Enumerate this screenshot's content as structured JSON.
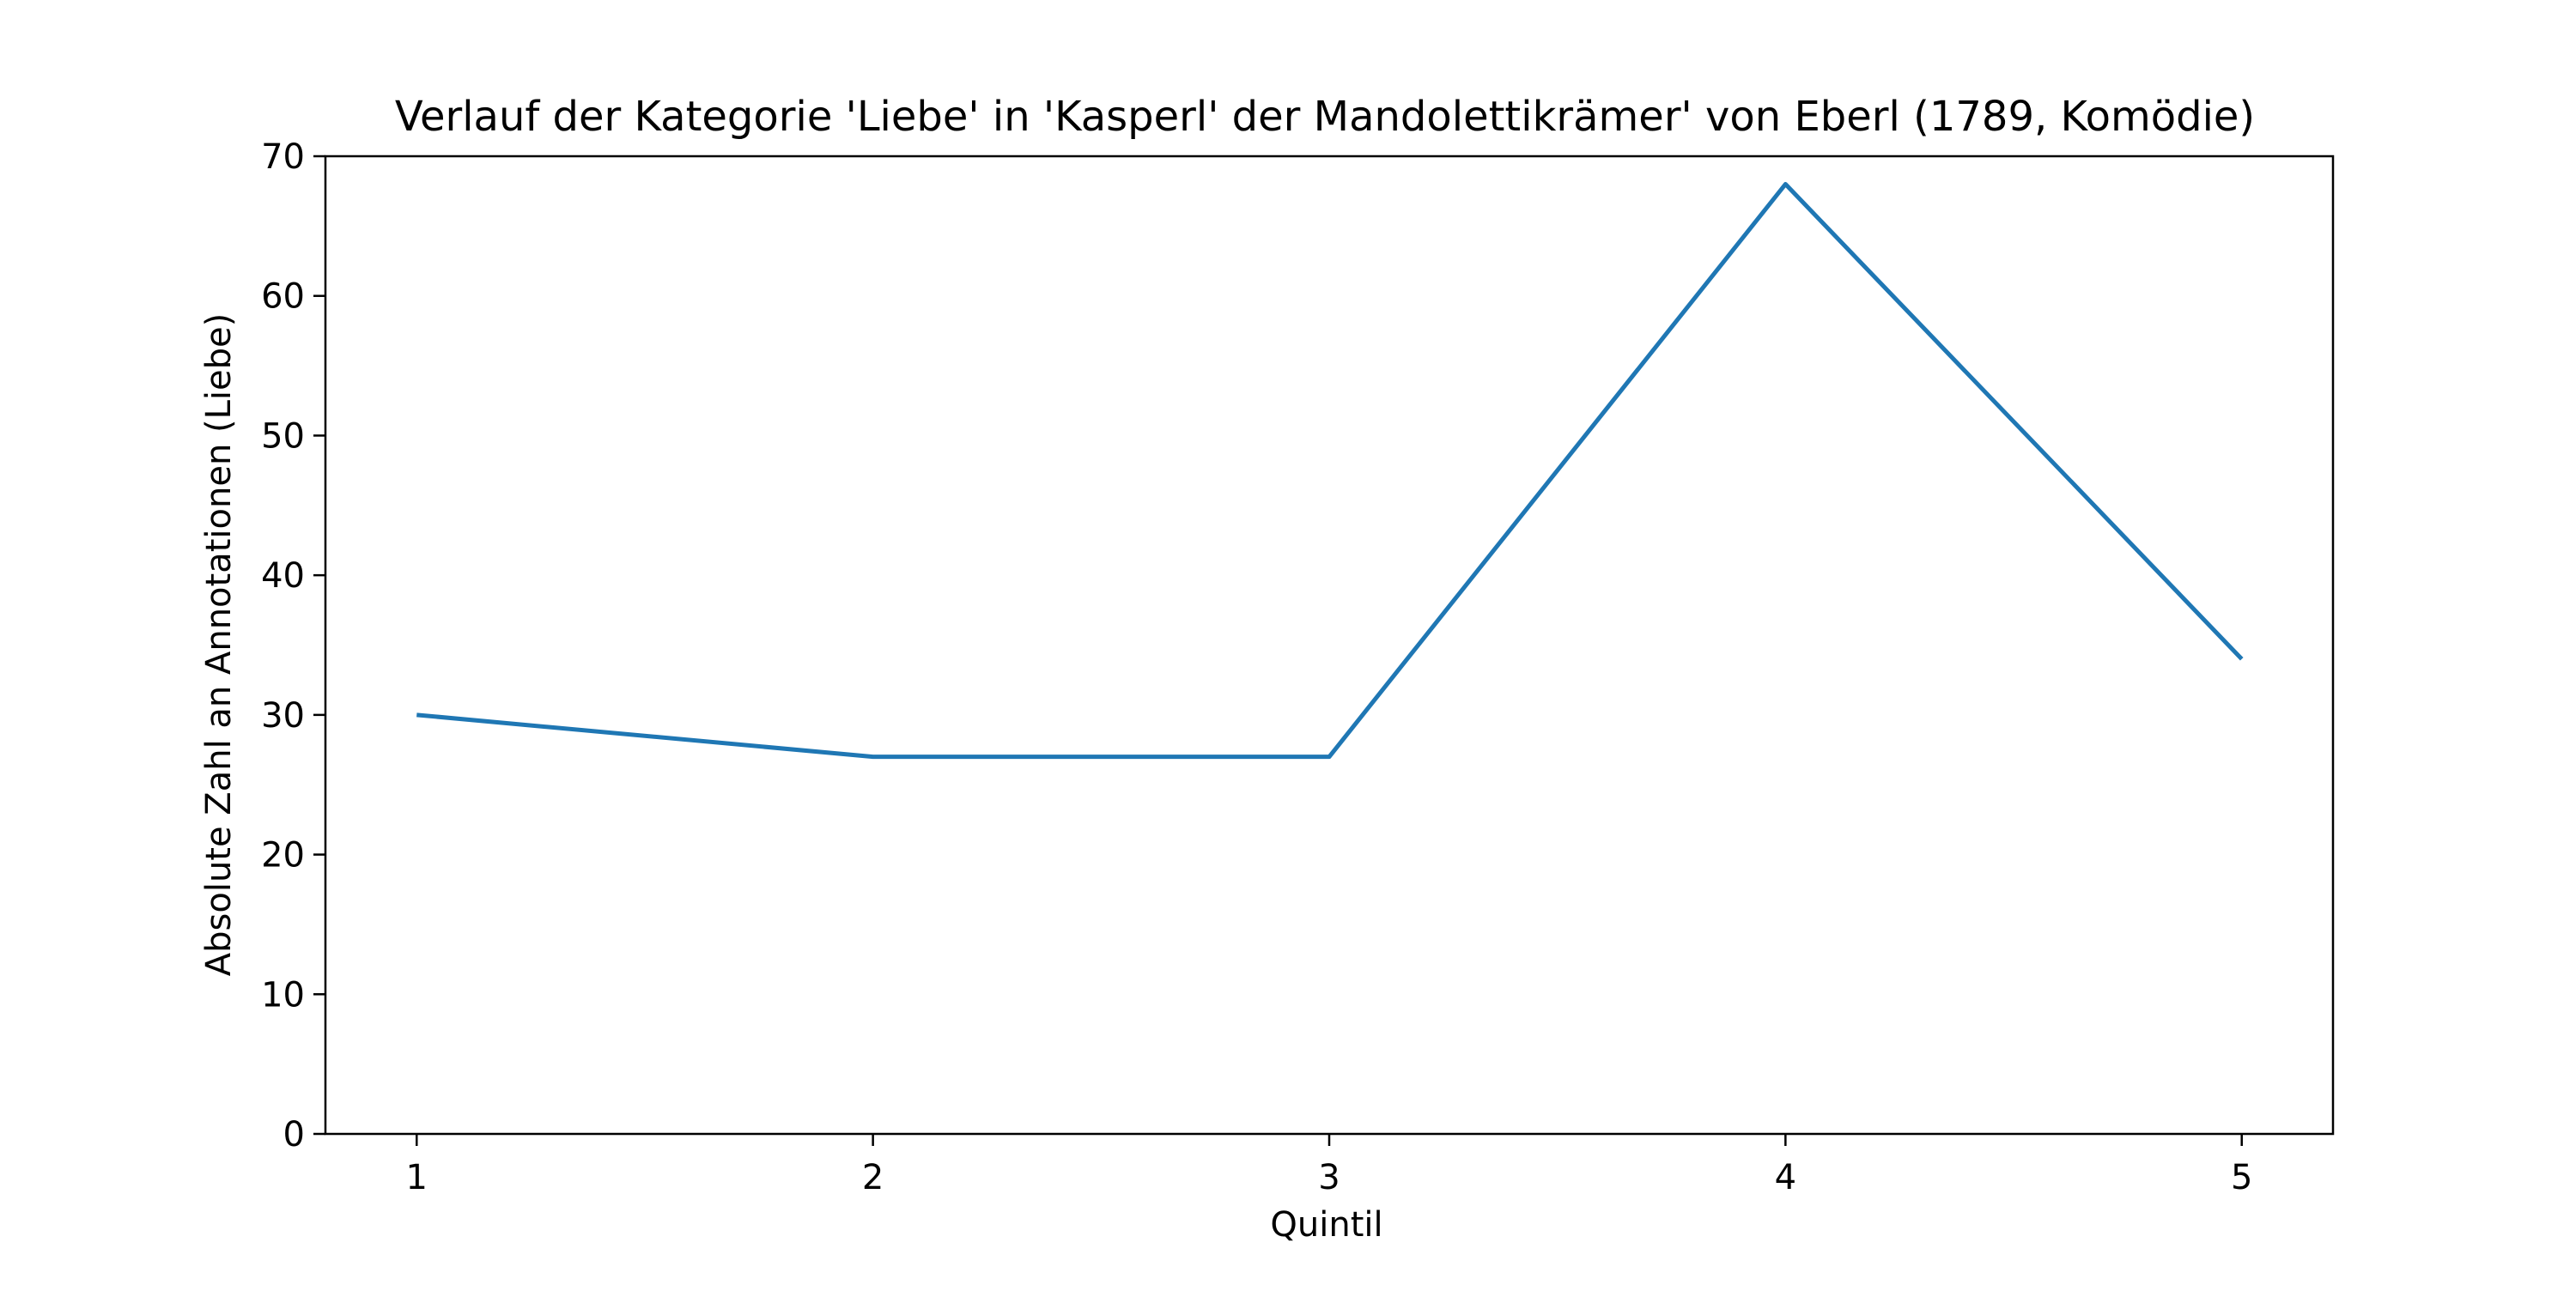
{
  "chart_data": {
    "type": "line",
    "title": "Verlauf der Kategorie 'Liebe' in 'Kasperl' der Mandolettikrämer' von Eberl (1789, Komödie)",
    "xlabel": "Quintil",
    "ylabel": "Absolute Zahl an Annotationen (Liebe)",
    "x": [
      1,
      2,
      3,
      4,
      5
    ],
    "series": [
      {
        "values": [
          30,
          27,
          27,
          68,
          34
        ],
        "color": "#1f77b4"
      }
    ],
    "xlim": [
      0.8,
      5.2
    ],
    "ylim": [
      0,
      70
    ],
    "xticks": [
      "1",
      "2",
      "3",
      "4",
      "5"
    ],
    "yticks": [
      "0",
      "10",
      "20",
      "30",
      "40",
      "50",
      "60",
      "70"
    ],
    "grid": false,
    "legend": false
  }
}
